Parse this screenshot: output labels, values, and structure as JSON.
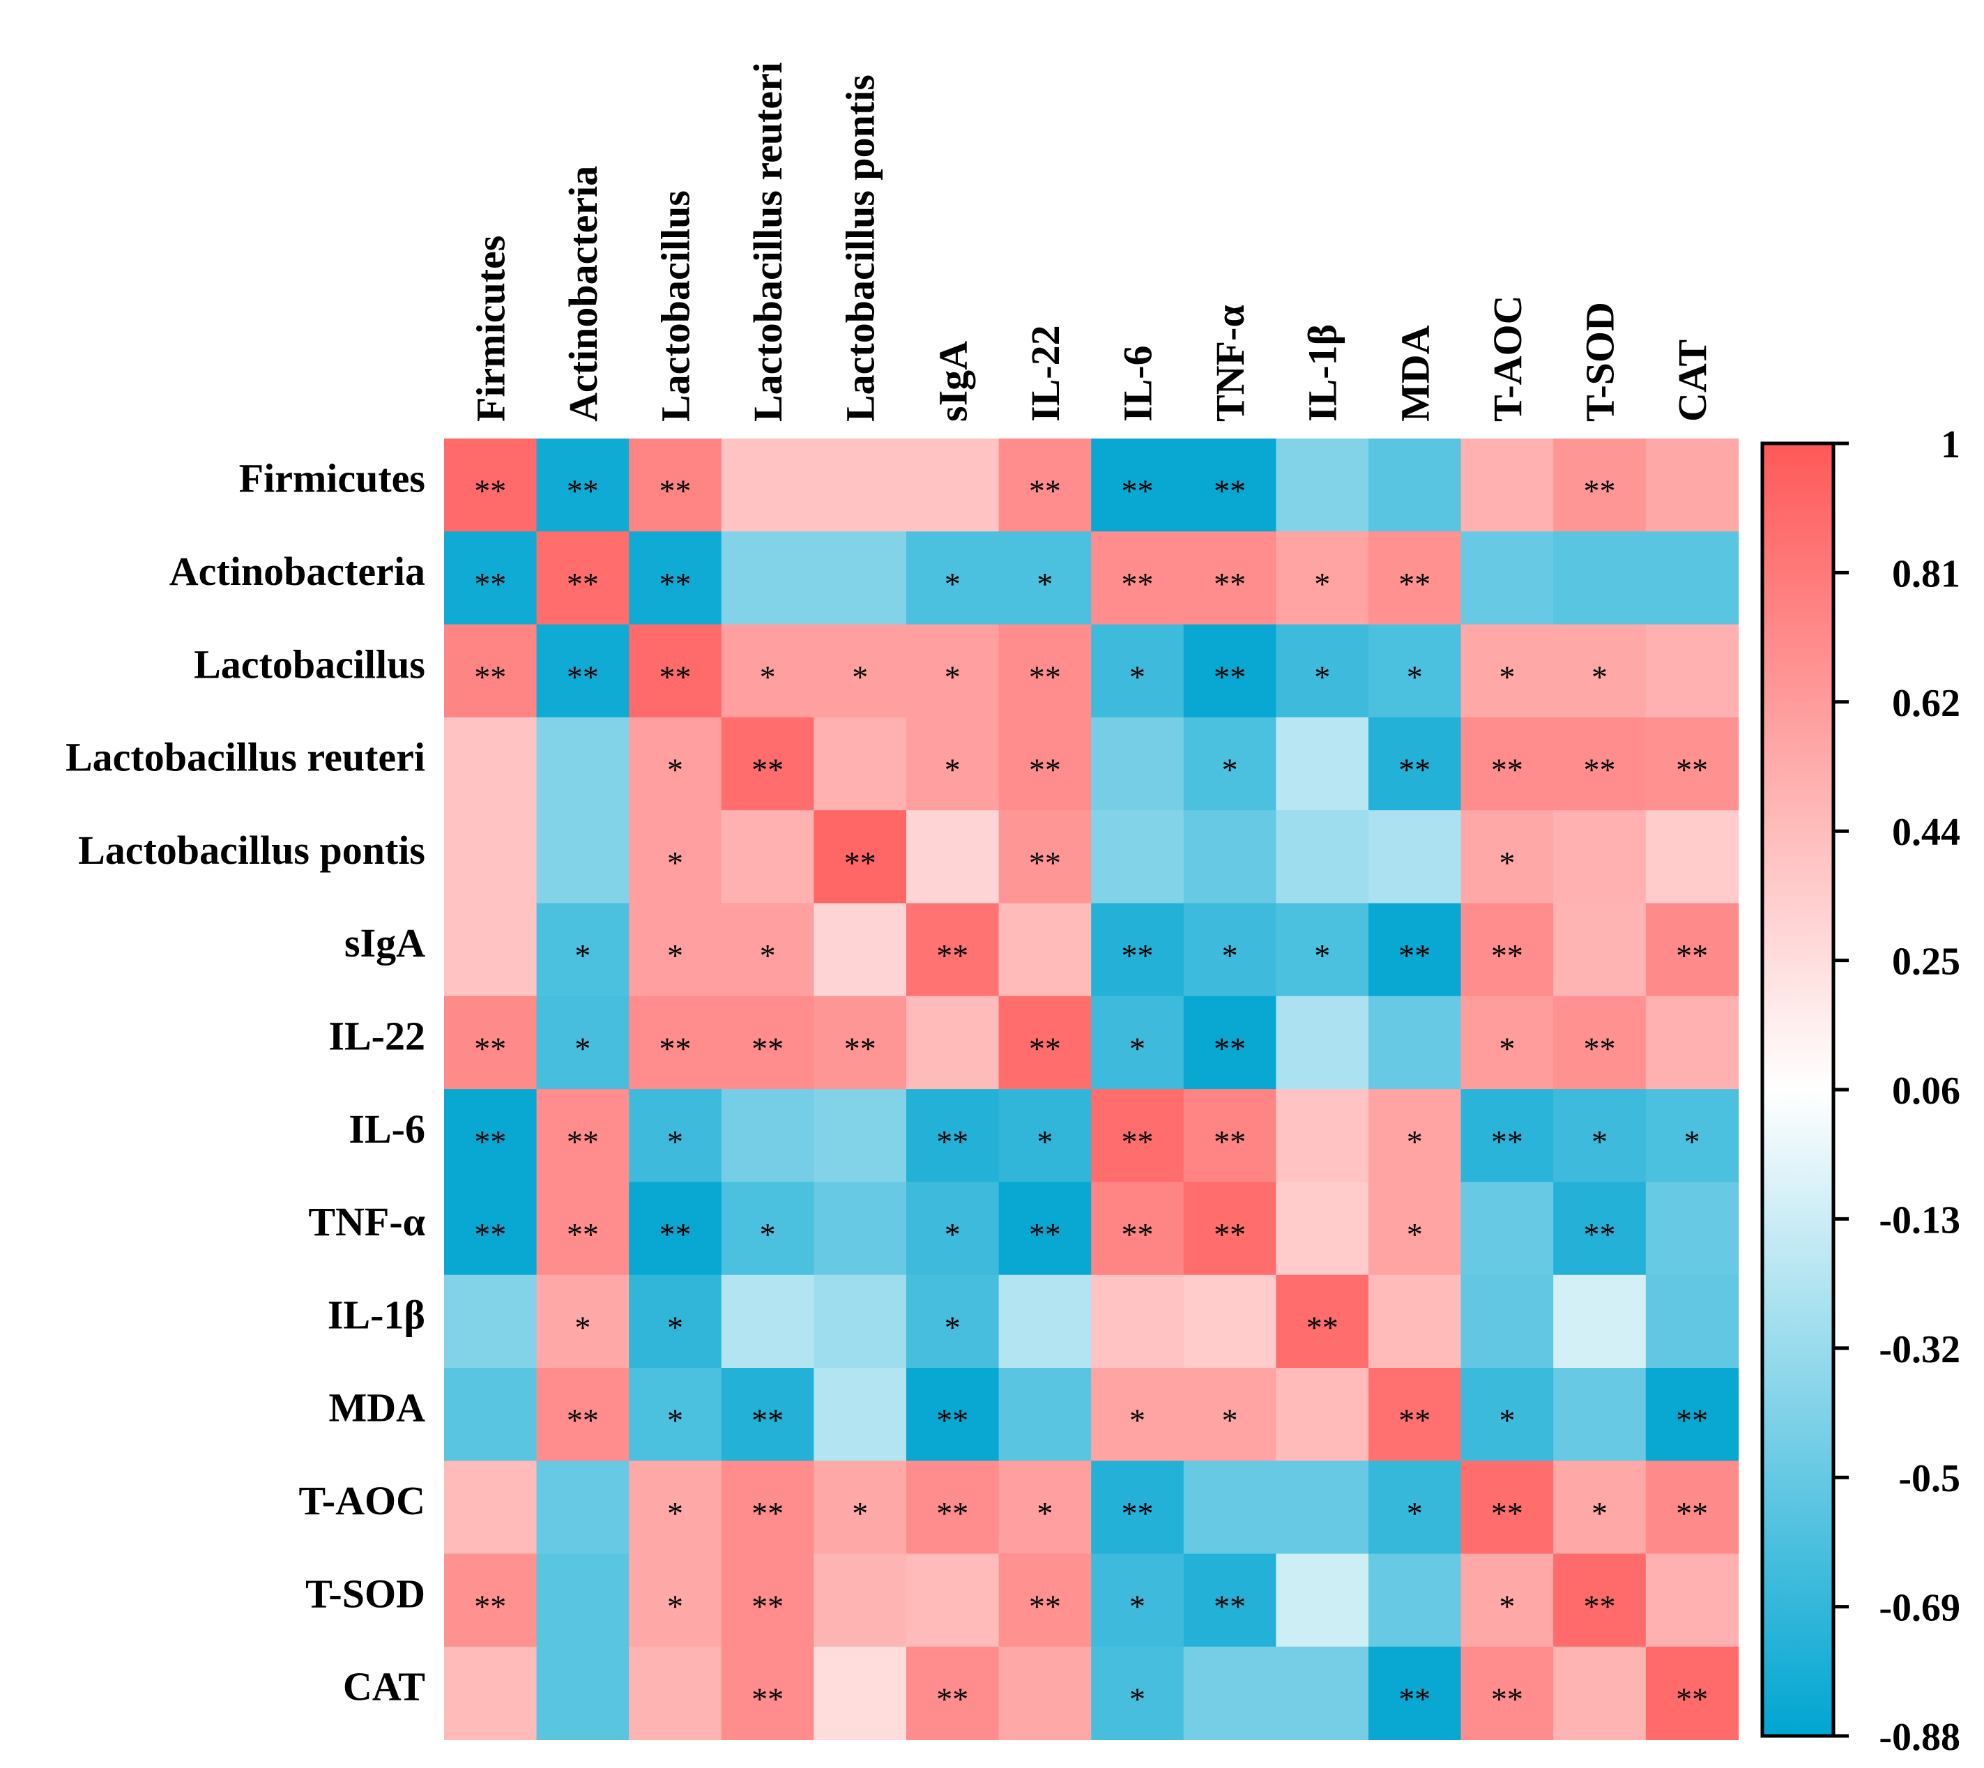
{
  "chart_data": {
    "type": "heatmap",
    "title": "",
    "variables": [
      "Firmicutes",
      "Actinobacteria",
      "Lactobacillus",
      "Lactobacillus reuteri",
      "Lactobacillus pontis",
      "sIgA",
      "IL-22",
      "IL-6",
      "TNF-α",
      "IL-1β",
      "MDA",
      "T-AOC",
      "T-SOD",
      "CAT"
    ],
    "values": [
      [
        0.9,
        -0.82,
        0.75,
        0.4,
        0.4,
        0.4,
        0.7,
        -0.85,
        -0.85,
        -0.4,
        -0.55,
        0.5,
        0.65,
        0.55
      ],
      [
        -0.82,
        0.88,
        -0.82,
        -0.4,
        -0.4,
        -0.6,
        -0.6,
        0.7,
        0.7,
        0.58,
        0.68,
        -0.5,
        -0.55,
        -0.55
      ],
      [
        0.75,
        -0.82,
        0.9,
        0.6,
        0.6,
        0.6,
        0.7,
        -0.65,
        -0.85,
        -0.65,
        -0.6,
        0.55,
        0.55,
        0.5
      ],
      [
        0.4,
        -0.4,
        0.6,
        0.88,
        0.5,
        0.6,
        0.7,
        -0.45,
        -0.6,
        -0.2,
        -0.75,
        0.7,
        0.7,
        0.68
      ],
      [
        0.4,
        -0.4,
        0.6,
        0.5,
        0.92,
        0.3,
        0.65,
        -0.4,
        -0.5,
        -0.3,
        -0.25,
        0.55,
        0.5,
        0.35
      ],
      [
        0.4,
        -0.6,
        0.6,
        0.6,
        0.3,
        0.85,
        0.45,
        -0.75,
        -0.65,
        -0.6,
        -0.85,
        0.7,
        0.48,
        0.72
      ],
      [
        0.72,
        -0.62,
        0.7,
        0.7,
        0.65,
        0.45,
        0.88,
        -0.65,
        -0.85,
        -0.25,
        -0.5,
        0.62,
        0.68,
        0.5
      ],
      [
        -0.85,
        0.7,
        -0.65,
        -0.45,
        -0.4,
        -0.75,
        -0.7,
        0.88,
        0.75,
        0.4,
        0.58,
        -0.72,
        -0.65,
        -0.6
      ],
      [
        -0.85,
        0.7,
        -0.85,
        -0.6,
        -0.5,
        -0.65,
        -0.85,
        0.75,
        0.88,
        0.35,
        0.58,
        -0.5,
        -0.75,
        -0.5
      ],
      [
        -0.4,
        0.55,
        -0.7,
        -0.22,
        -0.3,
        -0.62,
        -0.22,
        0.4,
        0.35,
        0.88,
        0.45,
        -0.52,
        -0.1,
        -0.52
      ],
      [
        -0.55,
        0.7,
        -0.6,
        -0.75,
        -0.22,
        -0.85,
        -0.55,
        0.58,
        0.58,
        0.45,
        0.86,
        -0.66,
        -0.5,
        -0.85
      ],
      [
        0.45,
        -0.5,
        0.55,
        0.7,
        0.55,
        0.7,
        0.6,
        -0.75,
        -0.5,
        -0.5,
        -0.68,
        0.88,
        0.55,
        0.72
      ],
      [
        0.68,
        -0.55,
        0.55,
        0.7,
        0.48,
        0.45,
        0.68,
        -0.65,
        -0.75,
        -0.12,
        -0.5,
        0.55,
        0.9,
        0.5
      ],
      [
        0.45,
        -0.55,
        0.48,
        0.7,
        0.25,
        0.7,
        0.55,
        -0.62,
        -0.45,
        -0.45,
        -0.85,
        0.7,
        0.48,
        0.9
      ]
    ],
    "significance": [
      [
        "**",
        "**",
        "**",
        "",
        "",
        "",
        "**",
        "**",
        "**",
        "",
        "",
        "",
        "**",
        ""
      ],
      [
        "**",
        "**",
        "**",
        "",
        "",
        "*",
        "*",
        "**",
        "**",
        "*",
        "**",
        "",
        "",
        ""
      ],
      [
        "**",
        "**",
        "**",
        "*",
        "*",
        "*",
        "**",
        "*",
        "**",
        "*",
        "*",
        "*",
        "*",
        ""
      ],
      [
        "",
        "",
        "*",
        "**",
        "",
        "*",
        "**",
        "",
        "*",
        "",
        "**",
        "**",
        "**",
        "**"
      ],
      [
        "",
        "",
        "*",
        "",
        "**",
        "",
        "**",
        "",
        "",
        "",
        "",
        "*",
        "",
        ""
      ],
      [
        "",
        "*",
        "*",
        "*",
        "",
        "**",
        "",
        "**",
        "*",
        "*",
        "**",
        "**",
        "",
        "**"
      ],
      [
        "**",
        "*",
        "**",
        "**",
        "**",
        "",
        "**",
        "*",
        "**",
        "",
        "",
        "*",
        "**",
        ""
      ],
      [
        "**",
        "**",
        "*",
        "",
        "",
        "**",
        "*",
        "**",
        "**",
        "",
        "*",
        "**",
        "*",
        "*"
      ],
      [
        "**",
        "**",
        "**",
        "*",
        "",
        "*",
        "**",
        "**",
        "**",
        "",
        "*",
        "",
        "**",
        ""
      ],
      [
        "",
        "*",
        "*",
        "",
        "",
        "*",
        "",
        "",
        "",
        "**",
        "",
        "",
        "",
        ""
      ],
      [
        "",
        "**",
        "*",
        "**",
        "",
        "**",
        "",
        "*",
        "*",
        "",
        "**",
        "*",
        "",
        "**"
      ],
      [
        "",
        "",
        "*",
        "**",
        "*",
        "**",
        "*",
        "**",
        "",
        "",
        "*",
        "**",
        "*",
        "**"
      ],
      [
        "**",
        "",
        "*",
        "**",
        "",
        "",
        "**",
        "*",
        "**",
        "",
        "",
        "*",
        "**",
        ""
      ],
      [
        "",
        "",
        "",
        "**",
        "",
        "**",
        "",
        "*",
        "",
        "",
        "**",
        "**",
        "",
        "**"
      ]
    ],
    "colorbar": {
      "ticks": [
        "1",
        "0.81",
        "0.62",
        "0.44",
        "0.25",
        "0.06",
        "-0.13",
        "-0.32",
        "-0.5",
        "-0.69",
        "-0.88"
      ],
      "range": [
        -0.88,
        1
      ],
      "colors": {
        "low": "#00a5d1",
        "mid": "#ffffff",
        "high": "#ff5858"
      }
    }
  }
}
